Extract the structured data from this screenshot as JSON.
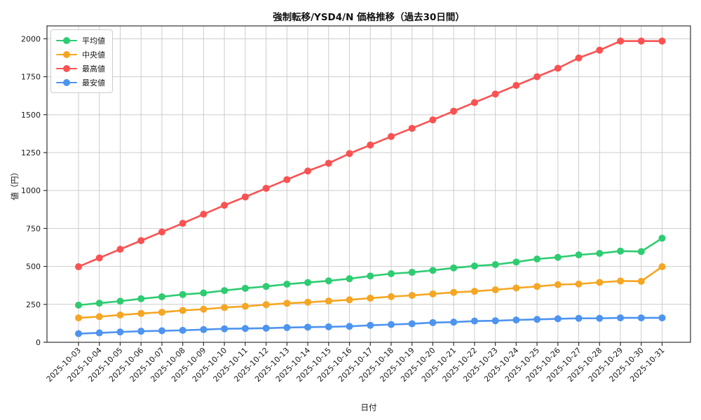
{
  "figure": {
    "title": "強制転移/YSD4/N 価格推移（過去30日間）",
    "xlabel": "日付",
    "ylabel": "値（円）"
  },
  "chart_data": {
    "type": "line",
    "title": "強制転移/YSD4/N 価格推移（過去30日間）",
    "xlabel": "日付",
    "ylabel": "値（円）",
    "grid": true,
    "legend_position": "upper-left",
    "ylim": [
      0,
      2085
    ],
    "yticks": [
      0,
      250,
      500,
      750,
      1000,
      1250,
      1500,
      1750,
      2000
    ],
    "categories": [
      "2025-10-03",
      "2025-10-04",
      "2025-10-05",
      "2025-10-06",
      "2025-10-07",
      "2025-10-08",
      "2025-10-09",
      "2025-10-10",
      "2025-10-11",
      "2025-10-12",
      "2025-10-13",
      "2025-10-14",
      "2025-10-15",
      "2025-10-16",
      "2025-10-17",
      "2025-10-18",
      "2025-10-19",
      "2025-10-20",
      "2025-10-21",
      "2025-10-22",
      "2025-10-23",
      "2025-10-24",
      "2025-10-25",
      "2025-10-26",
      "2025-10-27",
      "2025-10-28",
      "2025-10-29",
      "2025-10-30",
      "2025-10-31"
    ],
    "series": [
      {
        "key": "average",
        "name": "平均値",
        "color": "#2ecc71",
        "values": [
          245,
          258,
          271,
          287,
          300,
          315,
          325,
          341,
          356,
          368,
          383,
          394,
          405,
          419,
          437,
          452,
          461,
          474,
          490,
          503,
          512,
          529,
          549,
          560,
          576,
          586,
          601,
          598,
          686
        ]
      },
      {
        "key": "median",
        "name": "中央値",
        "color": "#f5a623",
        "values": [
          161,
          169,
          180,
          190,
          198,
          210,
          218,
          229,
          237,
          248,
          257,
          264,
          272,
          280,
          291,
          301,
          309,
          319,
          329,
          336,
          346,
          358,
          368,
          380,
          384,
          395,
          404,
          402,
          498
        ]
      },
      {
        "key": "max",
        "name": "最高値",
        "color": "#fa5252",
        "values": [
          498,
          556,
          613,
          670,
          727,
          784,
          844,
          903,
          958,
          1015,
          1072,
          1129,
          1180,
          1244,
          1300,
          1356,
          1410,
          1466,
          1523,
          1580,
          1636,
          1693,
          1750,
          1806,
          1874,
          1925,
          1985,
          1985,
          1985
        ]
      },
      {
        "key": "min",
        "name": "最安値",
        "color": "#4d94f0",
        "values": [
          57,
          62,
          68,
          73,
          76,
          79,
          84,
          89,
          91,
          93,
          97,
          100,
          102,
          105,
          112,
          117,
          122,
          130,
          133,
          140,
          142,
          147,
          151,
          155,
          158,
          158,
          161,
          161,
          161
        ]
      }
    ]
  }
}
